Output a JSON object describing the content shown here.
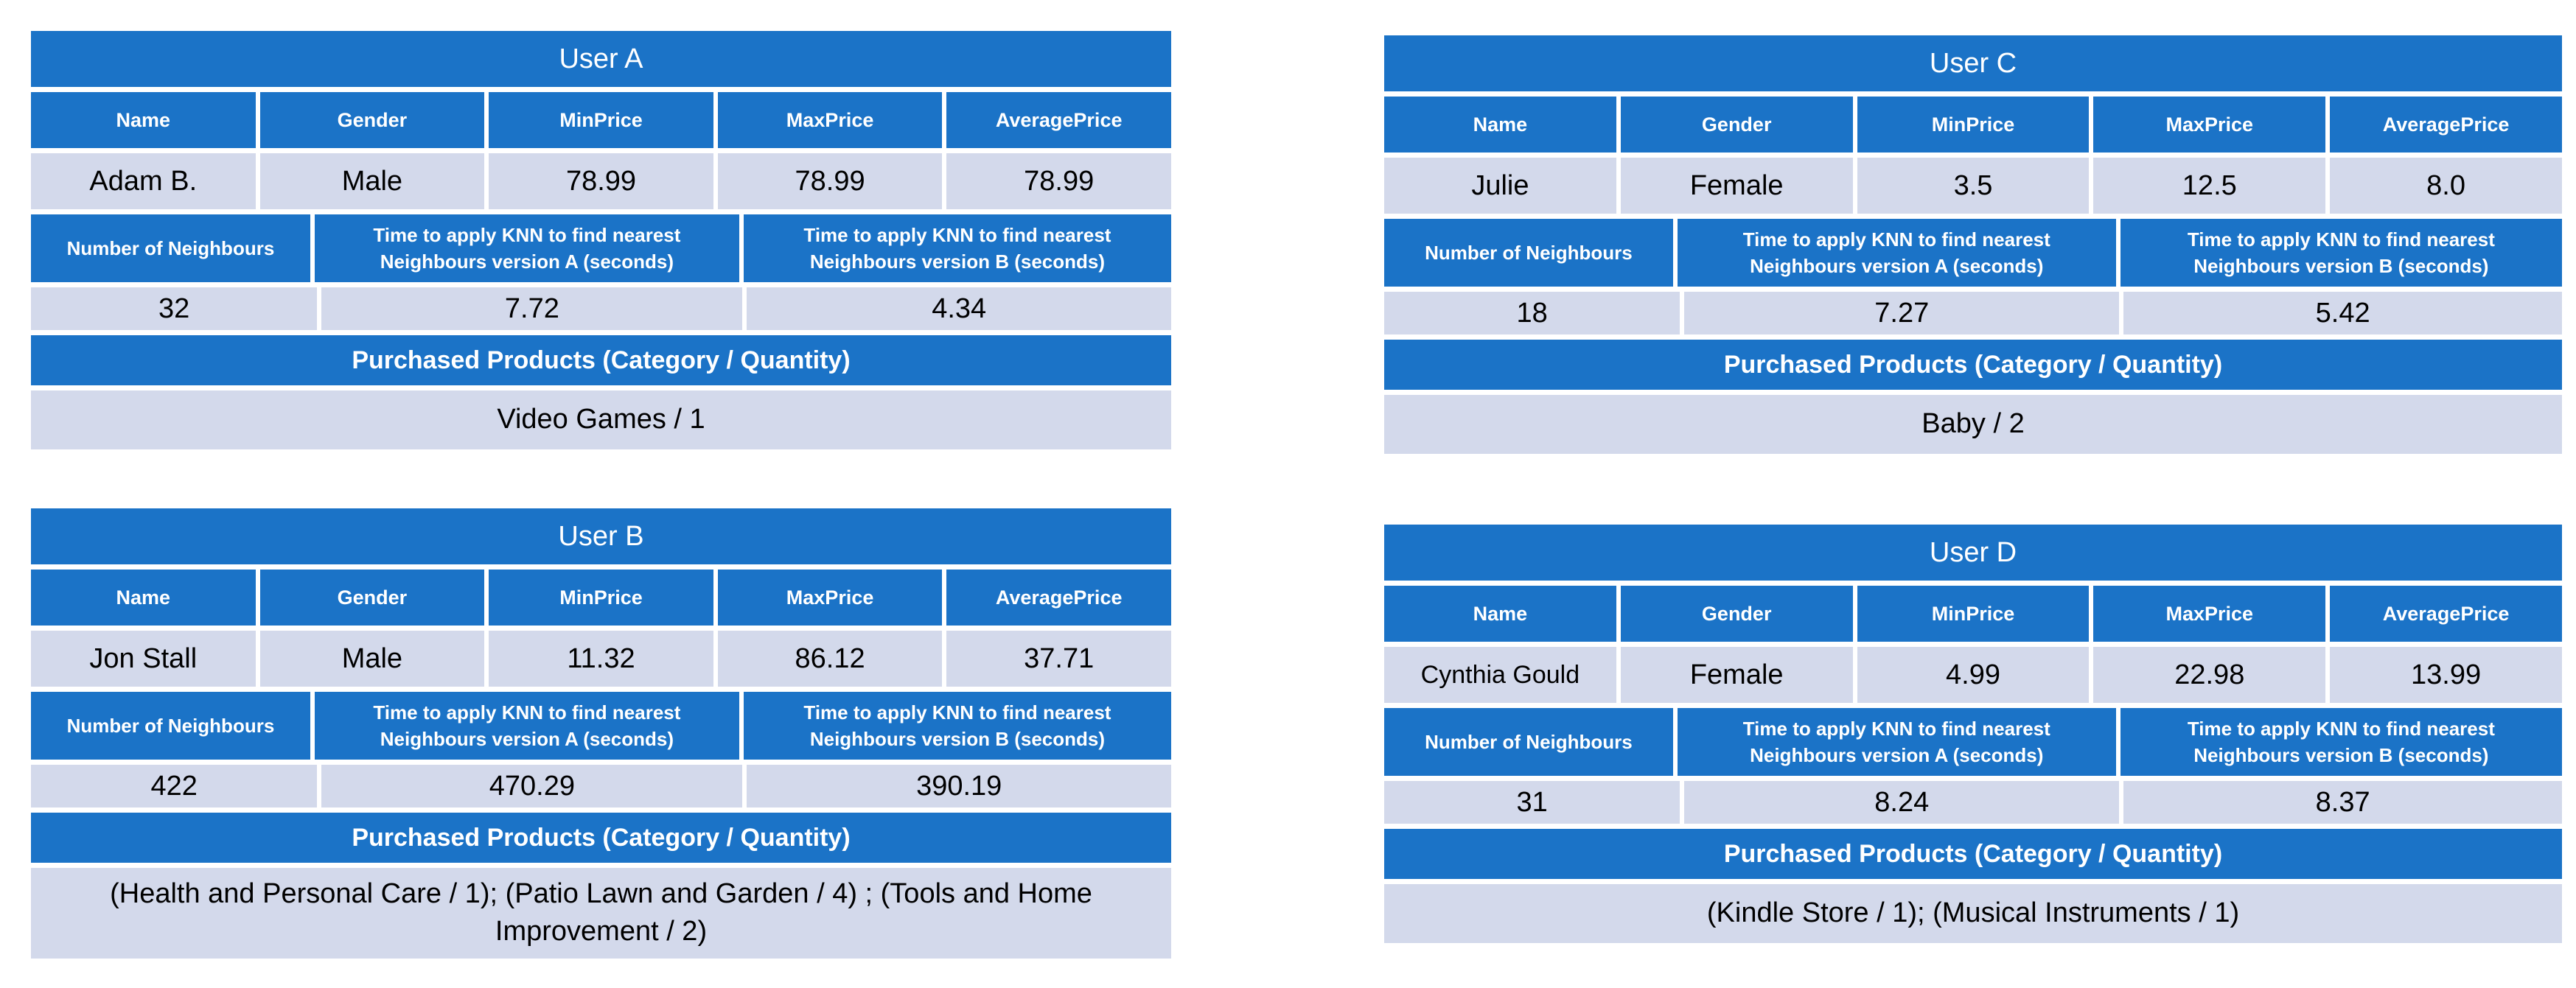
{
  "colors": {
    "header_blue": "#1B73C7",
    "row_light": "#D3D9EB",
    "header_text": "#FFFFFF",
    "body_text": "#000000",
    "background": "#FFFFFF"
  },
  "labels": {
    "person_headers": [
      "Name",
      "Gender",
      "MinPrice",
      "MaxPrice",
      "AveragePrice"
    ],
    "knn_headers": [
      "Number of Neighbours",
      "Time  to apply KNN to find nearest Neighbours version A (seconds)",
      "Time  to apply KNN to find nearest Neighbours version B (seconds)"
    ],
    "products_header": "Purchased Products (Category / Quantity)"
  },
  "tables": [
    {
      "title": "User A",
      "name": "Adam B.",
      "gender": "Male",
      "min_price": "78.99",
      "max_price": "78.99",
      "average_price": "78.99",
      "neighbours": "32",
      "time_a": "7.72",
      "time_b": "4.34",
      "products": "Video Games / 1"
    },
    {
      "title": "User B",
      "name": "Jon Stall",
      "gender": "Male",
      "min_price": "11.32",
      "max_price": "86.12",
      "average_price": "37.71",
      "neighbours": "422",
      "time_a": "470.29",
      "time_b": "390.19",
      "products": "(Health and Personal Care / 1); (Patio Lawn and Garden / 4) ; (Tools and Home Improvement / 2)"
    },
    {
      "title": "User C",
      "name": "Julie",
      "gender": "Female",
      "min_price": "3.5",
      "max_price": "12.5",
      "average_price": "8.0",
      "neighbours": "18",
      "time_a": "7.27",
      "time_b": "5.42",
      "products": "Baby / 2"
    },
    {
      "title": "User D",
      "name": "Cynthia Gould",
      "gender": "Female",
      "min_price": "4.99",
      "max_price": "22.98",
      "average_price": "13.99",
      "neighbours": "31",
      "time_a": "8.24",
      "time_b": "8.37",
      "products": "(Kindle Store / 1); (Musical Instruments / 1)"
    }
  ],
  "chart_data": {
    "type": "table",
    "title": "KNN user comparison tables",
    "columns_person": [
      "Name",
      "Gender",
      "MinPrice",
      "MaxPrice",
      "AveragePrice"
    ],
    "columns_knn": [
      "Number of Neighbours",
      "Time to apply KNN version A (seconds)",
      "Time to apply KNN version B (seconds)"
    ],
    "rows": [
      [
        "User A",
        "Adam B.",
        "Male",
        78.99,
        78.99,
        78.99,
        32,
        7.72,
        4.34,
        "Video Games / 1"
      ],
      [
        "User B",
        "Jon Stall",
        "Male",
        11.32,
        86.12,
        37.71,
        422,
        470.29,
        390.19,
        "(Health and Personal Care / 1); (Patio Lawn and Garden / 4) ; (Tools and Home Improvement / 2)"
      ],
      [
        "User C",
        "Julie",
        "Female",
        3.5,
        12.5,
        8.0,
        18,
        7.27,
        5.42,
        "Baby / 2"
      ],
      [
        "User D",
        "Cynthia Gould",
        "Female",
        4.99,
        22.98,
        13.99,
        31,
        8.24,
        8.37,
        "(Kindle Store / 1); (Musical Instruments / 1)"
      ]
    ]
  }
}
